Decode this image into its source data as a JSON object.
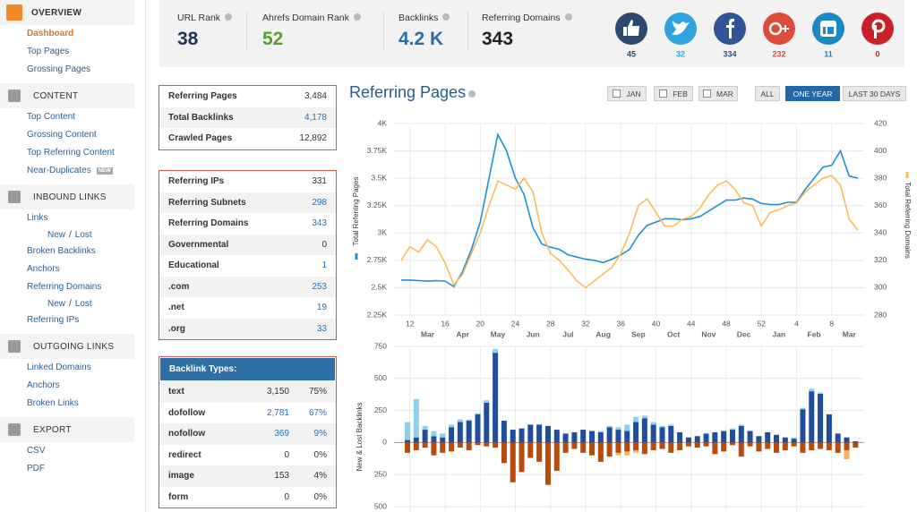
{
  "sidebar": [
    {
      "title": "OVERVIEW",
      "items": [
        {
          "label": "Dashboard"
        },
        {
          "label": "Top Pages"
        },
        {
          "label": "Grossing Pages"
        }
      ]
    },
    {
      "title": "CONTENT",
      "items": [
        {
          "label": "Top Content"
        },
        {
          "label": "Grossing Content"
        },
        {
          "label": "Top Referring Content"
        },
        {
          "label": "Near-Duplicates",
          "badge": "NEW"
        }
      ]
    },
    {
      "title": "INBOUND LINKS",
      "items": [
        {
          "label": "Links",
          "sub": [
            "New",
            "Lost"
          ]
        },
        {
          "label": "Broken Backlinks"
        },
        {
          "label": "Anchors"
        },
        {
          "label": "Referring Domains",
          "sub": [
            "New",
            "Lost"
          ]
        },
        {
          "label": "Referring IPs"
        }
      ]
    },
    {
      "title": "OUTGOING LINKS",
      "items": [
        {
          "label": "Linked Domains"
        },
        {
          "label": "Anchors"
        },
        {
          "label": "Broken Links"
        }
      ]
    },
    {
      "title": "EXPORT",
      "items": [
        {
          "label": "CSV"
        },
        {
          "label": "PDF"
        }
      ]
    }
  ],
  "sub_separator": "/",
  "stats": [
    {
      "label": "URL Rank",
      "value": "38",
      "color": "#1d3557"
    },
    {
      "label": "Ahrefs Domain Rank",
      "value": "52",
      "color": "#5a9e2f"
    },
    {
      "label": "Backlinks",
      "value": "4.2 K",
      "color": "#2e6da4"
    },
    {
      "label": "Referring Domains",
      "value": "343",
      "color": "#222222"
    }
  ],
  "social": [
    {
      "icon": "like",
      "count": "45",
      "color": "#2b4a6e"
    },
    {
      "icon": "twitter",
      "count": "32",
      "color": "#2ea3e0"
    },
    {
      "icon": "facebook",
      "count": "334",
      "color": "#2f5597"
    },
    {
      "icon": "google-plus",
      "count": "232",
      "color": "#dd4b39"
    },
    {
      "icon": "linkedin",
      "count": "11",
      "color": "#1b8ac4"
    },
    {
      "icon": "pinterest",
      "count": "0",
      "color": "#cb2027"
    }
  ],
  "tables": [
    {
      "rows": [
        {
          "label": "Referring Pages",
          "value": "3,484"
        },
        {
          "label": "Total Backlinks",
          "value": "4,178",
          "link": true
        },
        {
          "label": "Crawled Pages",
          "value": "12,892"
        }
      ]
    },
    {
      "rows": [
        {
          "label": "Referring IPs",
          "value": "331"
        },
        {
          "label": "Referring Subnets",
          "value": "298",
          "link": true
        },
        {
          "label": "Referring Domains",
          "value": "343",
          "link": true
        },
        {
          "label": "Governmental",
          "value": "0"
        },
        {
          "label": "Educational",
          "value": "1",
          "link": true
        },
        {
          "label": ".com",
          "value": "253",
          "link": true
        },
        {
          "label": ".net",
          "value": "19",
          "link": true
        },
        {
          "label": ".org",
          "value": "33",
          "link": true
        }
      ]
    },
    {
      "header": "Backlink Types:",
      "rows": [
        {
          "label": "text",
          "value": "3,150",
          "percent": "75%"
        },
        {
          "label": "dofollow",
          "value": "2,781",
          "percent": "67%",
          "link": true
        },
        {
          "label": "nofollow",
          "value": "369",
          "percent": "9%",
          "link": true
        },
        {
          "label": "redirect",
          "value": "0",
          "percent": "0%"
        },
        {
          "label": "image",
          "value": "153",
          "percent": "4%"
        },
        {
          "label": "form",
          "value": "0",
          "percent": "0%"
        }
      ]
    }
  ],
  "date_filters": {
    "months": [
      "JAN",
      "FEB",
      "MAR"
    ],
    "ranges": [
      "ALL",
      "ONE YEAR",
      "LAST 30 DAYS"
    ]
  },
  "chart_data": [
    {
      "type": "line",
      "title": "Referring Pages",
      "ylabel": "Total Referring Pages",
      "y2label": "Total Referring Domains",
      "grid": true,
      "categories": [
        null,
        "12",
        null,
        null,
        null,
        "16",
        null,
        null,
        null,
        "20",
        null,
        null,
        null,
        "24",
        null,
        null,
        null,
        "28",
        null,
        null,
        null,
        "32",
        null,
        null,
        null,
        "36",
        null,
        null,
        null,
        "40",
        null,
        null,
        null,
        "44",
        null,
        null,
        null,
        "48",
        null,
        null,
        null,
        "52",
        null,
        null,
        null,
        "4",
        null,
        null,
        null,
        "8",
        null,
        null,
        null
      ],
      "month_labels": [
        null,
        null,
        null,
        "Mar",
        null,
        null,
        null,
        "Apr",
        null,
        null,
        null,
        "May",
        null,
        null,
        null,
        "Jun",
        null,
        null,
        null,
        "Jul",
        null,
        null,
        null,
        "Aug",
        null,
        null,
        null,
        "Sep",
        null,
        null,
        null,
        "Oct",
        null,
        null,
        null,
        "Nov",
        null,
        null,
        null,
        "Dec",
        null,
        null,
        null,
        "Jan",
        null,
        null,
        null,
        "Feb",
        null,
        null,
        null,
        "Mar",
        null
      ],
      "ylim": [
        2250,
        4000
      ],
      "yticks": [
        {
          "value": 2250,
          "label": "2.25K"
        },
        {
          "value": 2500,
          "label": "2.5K"
        },
        {
          "value": 2750,
          "label": "2.75K"
        },
        {
          "value": 3000,
          "label": "3K"
        },
        {
          "value": 3250,
          "label": "3.25K"
        },
        {
          "value": 3500,
          "label": "3.5K"
        },
        {
          "value": 3750,
          "label": "3.75K"
        },
        {
          "value": 4000,
          "label": "4K"
        }
      ],
      "y2lim": [
        280,
        420
      ],
      "y2ticks": [
        280,
        300,
        320,
        340,
        360,
        380,
        400,
        420
      ],
      "series": [
        {
          "color": "#1e90d6",
          "values": [
            2570,
            2570,
            2565,
            2560,
            2565,
            2560,
            2510,
            2650,
            2850,
            3100,
            3500,
            3900,
            3750,
            3500,
            3350,
            3050,
            2900,
            2870,
            2850,
            2800,
            2780,
            2760,
            2750,
            2730,
            2760,
            2800,
            2850,
            2980,
            3070,
            3100,
            3130,
            3130,
            3120,
            3130,
            3150,
            3200,
            3250,
            3300,
            3300,
            3320,
            3310,
            3270,
            3260,
            3260,
            3280,
            3280,
            3400,
            3500,
            3600,
            3620,
            3750,
            3520,
            3500
          ]
        },
        {
          "color": "#f8bd5a",
          "axis": "y2",
          "values": [
            320,
            330,
            326,
            335,
            330,
            318,
            302,
            310,
            325,
            340,
            360,
            378,
            375,
            372,
            380,
            370,
            340,
            325,
            320,
            313,
            305,
            300,
            305,
            310,
            315,
            325,
            340,
            360,
            365,
            355,
            345,
            345,
            350,
            352,
            358,
            368,
            375,
            378,
            372,
            362,
            360,
            345,
            355,
            357,
            360,
            362,
            370,
            375,
            380,
            382,
            375,
            350,
            342
          ]
        }
      ]
    },
    {
      "type": "bar",
      "stacked": true,
      "ylabel": "New & Lost Backlinks",
      "grid": true,
      "ylim": [
        -500,
        750
      ],
      "yticks": [
        {
          "value": -500,
          "label": "500"
        },
        {
          "value": -250,
          "label": "250"
        },
        0,
        250,
        500,
        750
      ],
      "series": [
        {
          "color": "#1f4f9c",
          "values": [
            20,
            40,
            100,
            50,
            40,
            120,
            160,
            170,
            220,
            310,
            700,
            170,
            100,
            110,
            140,
            140,
            130,
            100,
            70,
            80,
            100,
            90,
            80,
            120,
            100,
            90,
            160,
            190,
            140,
            120,
            130,
            80,
            40,
            50,
            70,
            80,
            90,
            100,
            130,
            90,
            50,
            80,
            60,
            40,
            30,
            260,
            400,
            380,
            220,
            70,
            40,
            10
          ]
        },
        {
          "color": "#8fd0f0",
          "values": [
            140,
            300,
            30,
            40,
            30,
            20,
            20,
            10,
            10,
            20,
            30,
            0,
            0,
            0,
            0,
            0,
            0,
            0,
            0,
            0,
            0,
            0,
            10,
            10,
            20,
            50,
            40,
            20,
            20,
            10,
            10,
            0,
            0,
            0,
            0,
            0,
            0,
            10,
            10,
            0,
            0,
            0,
            0,
            0,
            10,
            10,
            20,
            10,
            0,
            0,
            0,
            0
          ]
        },
        {
          "color": "#b84a0c",
          "values": [
            -80,
            -60,
            -40,
            -100,
            -80,
            -70,
            -40,
            -60,
            -20,
            -30,
            -40,
            -160,
            -310,
            -230,
            -120,
            -150,
            -330,
            -220,
            -80,
            -50,
            -80,
            -100,
            -150,
            -110,
            -80,
            -70,
            -60,
            -90,
            -60,
            -50,
            -80,
            -60,
            -30,
            -40,
            -30,
            -90,
            -70,
            -20,
            -110,
            -30,
            -70,
            -50,
            -80,
            -60,
            -30,
            -80,
            -60,
            -50,
            -60,
            -80,
            -60,
            -40
          ]
        },
        {
          "color": "#f2b36a",
          "values": [
            0,
            0,
            0,
            0,
            0,
            0,
            0,
            0,
            0,
            0,
            0,
            0,
            0,
            0,
            0,
            0,
            0,
            0,
            0,
            0,
            0,
            0,
            0,
            0,
            -20,
            -30,
            -20,
            0,
            0,
            0,
            0,
            0,
            0,
            0,
            0,
            0,
            0,
            0,
            0,
            0,
            0,
            0,
            0,
            0,
            0,
            0,
            0,
            0,
            0,
            0,
            -70,
            0
          ]
        }
      ]
    }
  ]
}
